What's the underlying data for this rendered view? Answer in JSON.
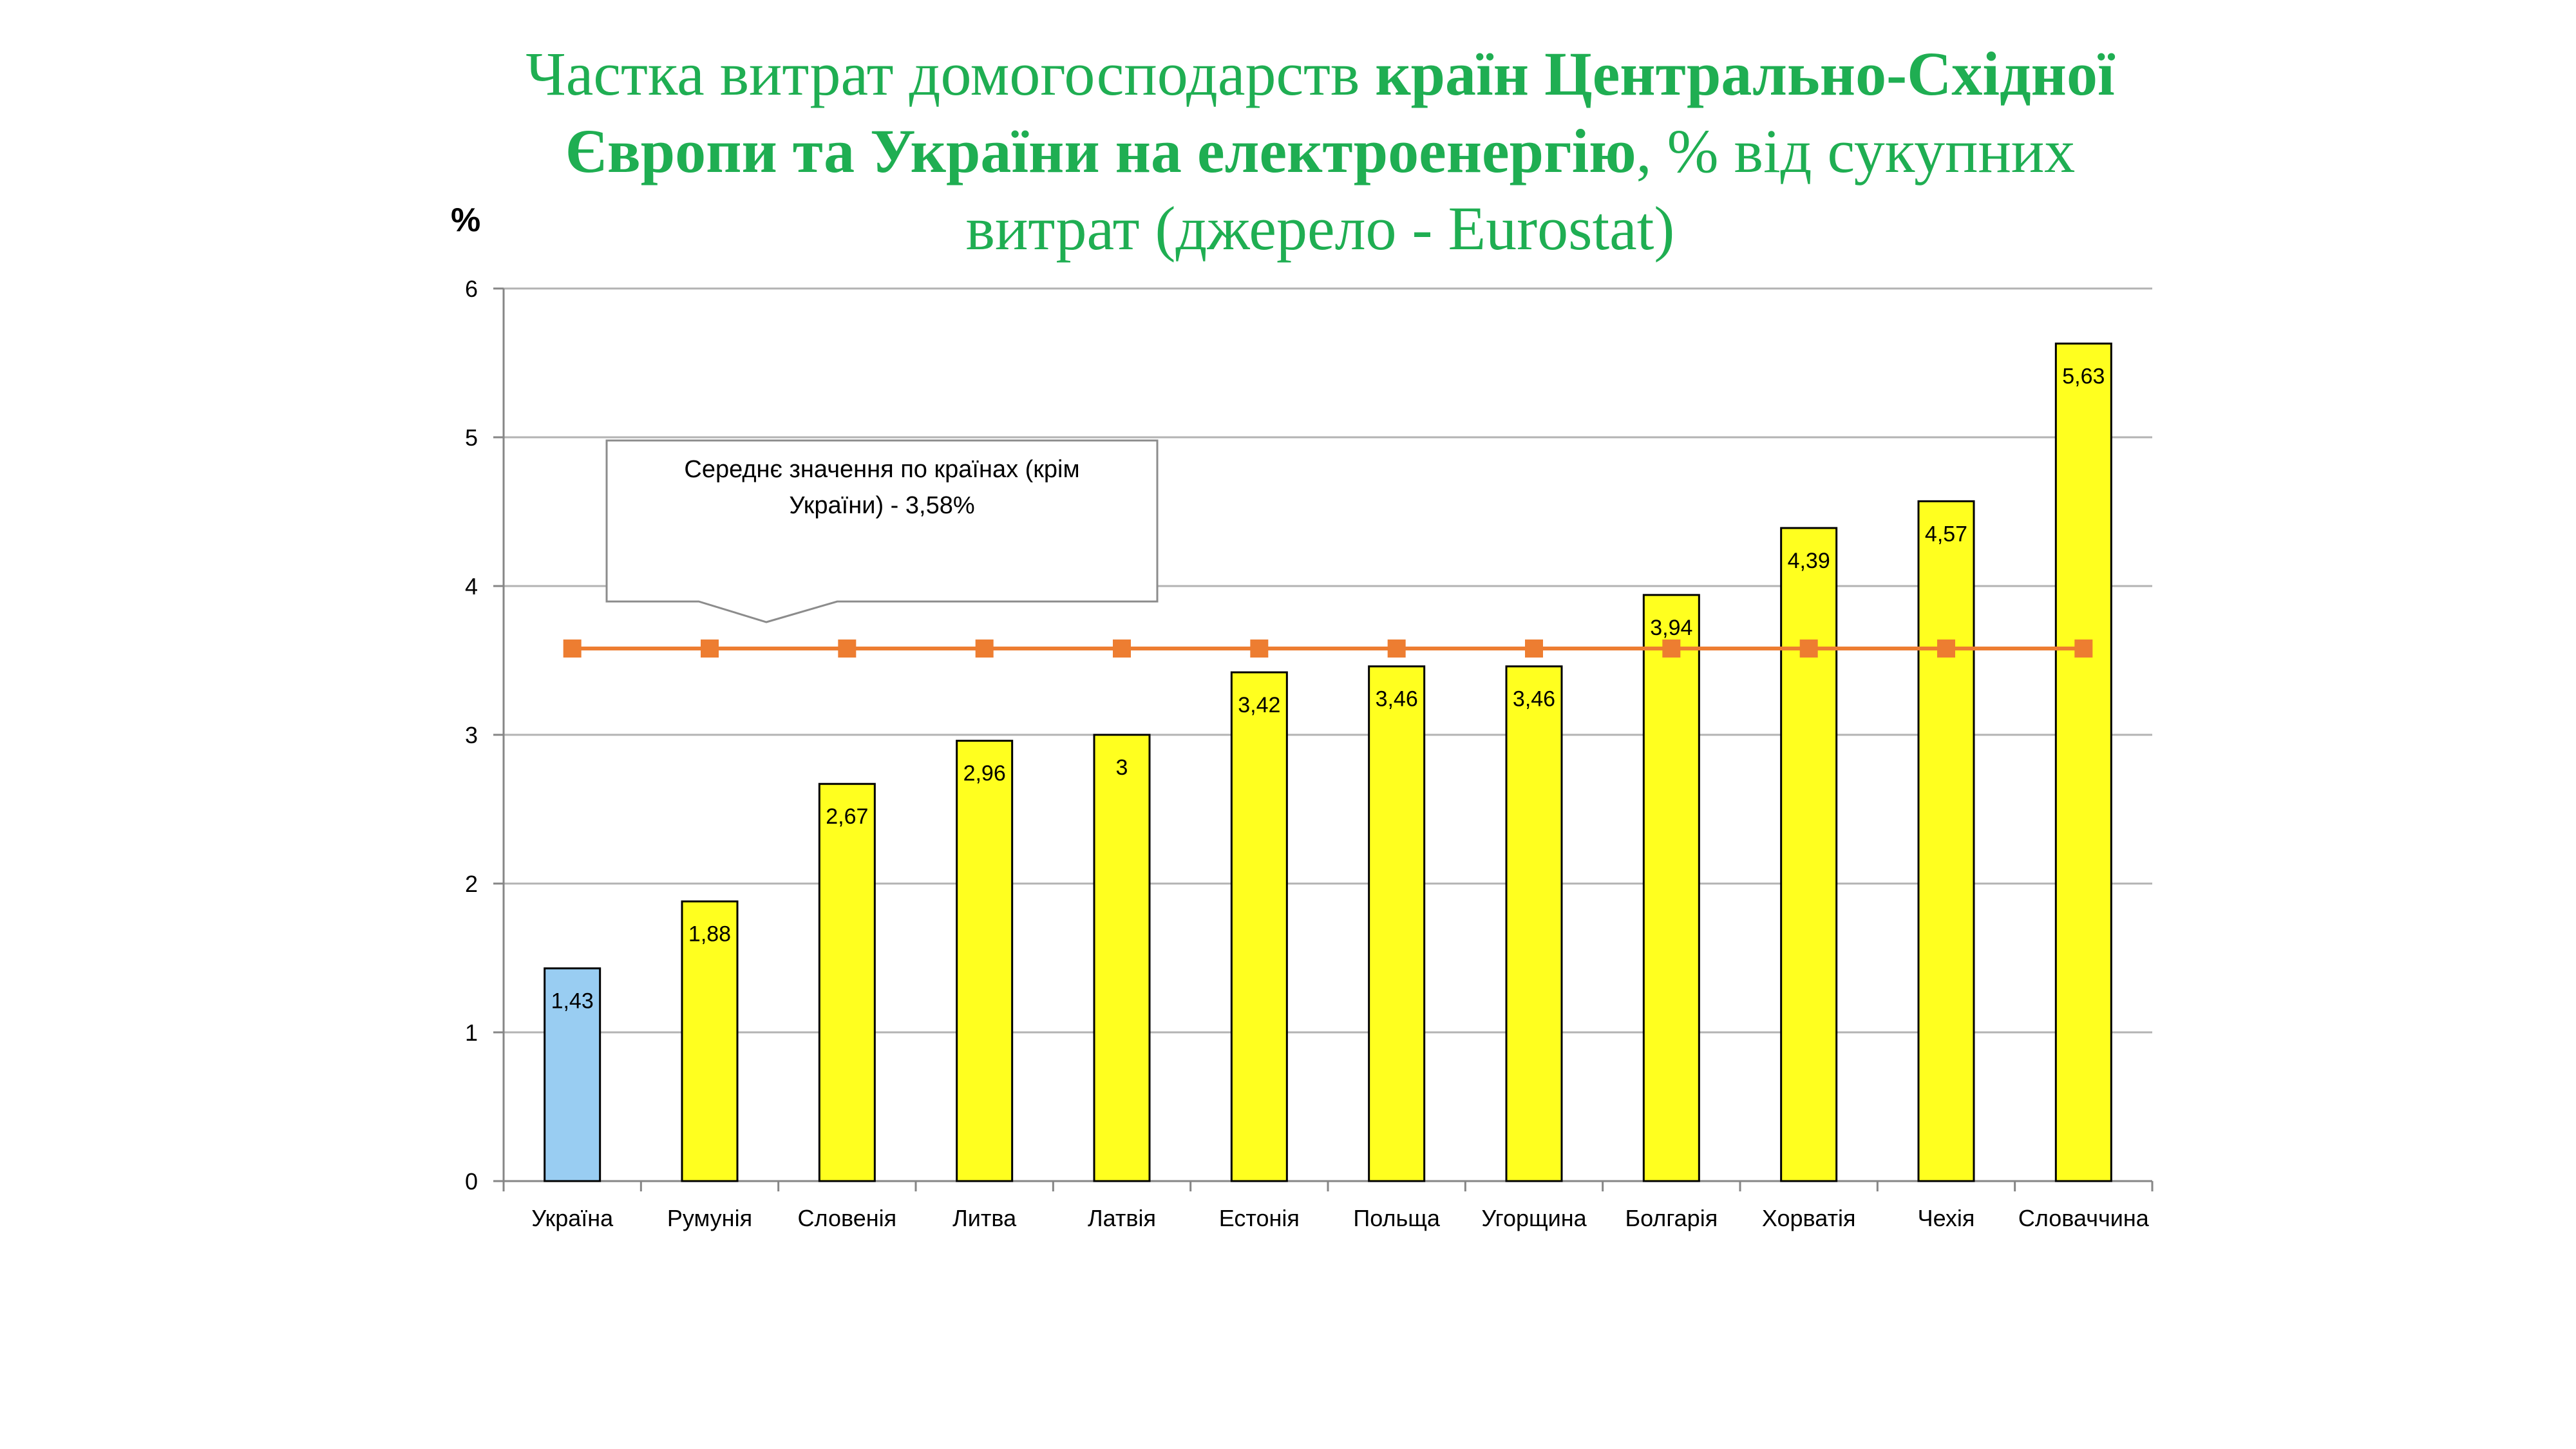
{
  "title": {
    "part1": "Частка витрат домогосподарств ",
    "part2_bold": "країн Центрально-Східної Європи та України на електроенергію",
    "part3": ", % від сукупних витрат (джерело - Eurostat)"
  },
  "unit_label": "%",
  "colors": {
    "title": "#1fae52",
    "bar_default": "#ffff1f",
    "bar_highlight": "#99cdf2",
    "average_line": "#ed7d31",
    "grid": "#b3b3b3"
  },
  "chart_data": {
    "type": "bar",
    "categories": [
      "Україна",
      "Румунія",
      "Словенія",
      "Литва",
      "Латвія",
      "Естонія",
      "Польща",
      "Угорщина",
      "Болгарія",
      "Хорватія",
      "Чехія",
      "Словаччина"
    ],
    "series": [
      {
        "values": [
          1.43,
          1.88,
          2.67,
          2.96,
          3,
          3.42,
          3.46,
          3.46,
          3.94,
          4.39,
          4.57,
          5.63
        ],
        "value_labels": [
          "1,43",
          "1,88",
          "2,67",
          "2,96",
          "3",
          "3,42",
          "3,46",
          "3,46",
          "3,94",
          "4,39",
          "4,57",
          "5,63"
        ],
        "highlight_index": 0
      },
      {
        "type": "line",
        "values": [
          3.58,
          3.58,
          3.58,
          3.58,
          3.58,
          3.58,
          3.58,
          3.58,
          3.58,
          3.58,
          3.58,
          3.58
        ]
      }
    ],
    "ylabel": "%",
    "ylim": [
      0,
      6
    ],
    "yticks": [
      0,
      1,
      2,
      3,
      4,
      5,
      6
    ],
    "grid": true,
    "annotation": {
      "line1": "Середнє значення по країнах (крім",
      "line2": "України) - 3,58%"
    }
  }
}
